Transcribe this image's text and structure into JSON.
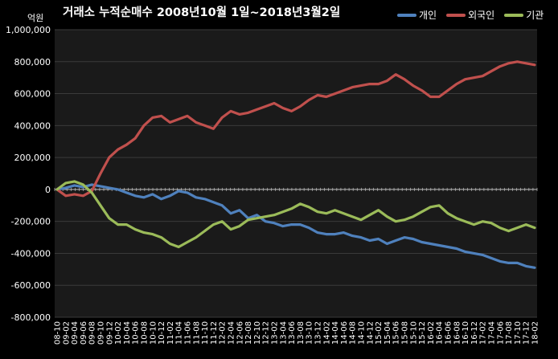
{
  "chart_data": {
    "type": "line",
    "title": "거래소 누적순매수 2008년10월 1일~2018년3월2일",
    "unit_label": "억원",
    "xlabel": "",
    "ylabel": "",
    "ylim": [
      -800000,
      1000000
    ],
    "yticks": [
      -800000,
      -600000,
      -400000,
      -200000,
      0,
      200000,
      400000,
      600000,
      800000,
      1000000
    ],
    "ytick_labels": [
      "-800,000",
      "-600,000",
      "-400,000",
      "-200,000",
      "0",
      "200,000",
      "400,000",
      "600,000",
      "800,000",
      "1,000,000"
    ],
    "grid": true,
    "legend": "top-right",
    "background": "#1a1a1a",
    "x_labels": [
      "08-10",
      "09-02",
      "09-04",
      "09-06",
      "09-08",
      "09-10",
      "09-12",
      "10-02",
      "10-04",
      "10-06",
      "10-08",
      "10-10",
      "10-12",
      "11-02",
      "11-04",
      "11-06",
      "11-08",
      "11-10",
      "11-12",
      "12-02",
      "12-04",
      "12-06",
      "12-08",
      "12-10",
      "12-12",
      "13-02",
      "13-04",
      "13-06",
      "13-08",
      "13-10",
      "13-12",
      "14-02",
      "14-04",
      "14-06",
      "14-08",
      "14-10",
      "14-12",
      "15-02",
      "15-04",
      "15-06",
      "15-08",
      "15-10",
      "15-12",
      "16-02",
      "16-04",
      "16-06",
      "16-08",
      "16-10",
      "16-12",
      "17-02",
      "17-04",
      "17-06",
      "17-08",
      "17-10",
      "17-12",
      "18-02"
    ],
    "series": [
      {
        "name": "개인",
        "color": "#4f81bd",
        "values": [
          0,
          10000,
          25000,
          15000,
          30000,
          20000,
          10000,
          0,
          -20000,
          -40000,
          -50000,
          -30000,
          -60000,
          -40000,
          -10000,
          -20000,
          -50000,
          -60000,
          -80000,
          -100000,
          -150000,
          -130000,
          -180000,
          -160000,
          -200000,
          -210000,
          -230000,
          -220000,
          -220000,
          -240000,
          -270000,
          -280000,
          -280000,
          -270000,
          -290000,
          -300000,
          -320000,
          -310000,
          -340000,
          -320000,
          -300000,
          -310000,
          -330000,
          -340000,
          -350000,
          -360000,
          -370000,
          -390000,
          -400000,
          -410000,
          -430000,
          -450000,
          -460000,
          -460000,
          -480000,
          -490000
        ]
      },
      {
        "name": "외국인",
        "color": "#c0504d",
        "values": [
          0,
          -40000,
          -30000,
          -40000,
          -10000,
          100000,
          200000,
          250000,
          280000,
          320000,
          400000,
          450000,
          460000,
          420000,
          440000,
          460000,
          420000,
          400000,
          380000,
          450000,
          490000,
          470000,
          480000,
          500000,
          520000,
          540000,
          510000,
          490000,
          520000,
          560000,
          590000,
          580000,
          600000,
          620000,
          640000,
          650000,
          660000,
          660000,
          680000,
          720000,
          690000,
          650000,
          620000,
          580000,
          580000,
          620000,
          660000,
          690000,
          700000,
          710000,
          740000,
          770000,
          790000,
          800000,
          790000,
          780000
        ]
      },
      {
        "name": "기관",
        "color": "#9bbb59",
        "values": [
          0,
          40000,
          50000,
          30000,
          -20000,
          -100000,
          -180000,
          -220000,
          -220000,
          -250000,
          -270000,
          -280000,
          -300000,
          -340000,
          -360000,
          -330000,
          -300000,
          -260000,
          -220000,
          -200000,
          -250000,
          -230000,
          -190000,
          -180000,
          -170000,
          -160000,
          -140000,
          -120000,
          -90000,
          -110000,
          -140000,
          -150000,
          -130000,
          -150000,
          -170000,
          -190000,
          -160000,
          -130000,
          -170000,
          -200000,
          -190000,
          -170000,
          -140000,
          -110000,
          -100000,
          -150000,
          -180000,
          -200000,
          -220000,
          -200000,
          -210000,
          -240000,
          -260000,
          -240000,
          -220000,
          -240000
        ]
      }
    ]
  }
}
